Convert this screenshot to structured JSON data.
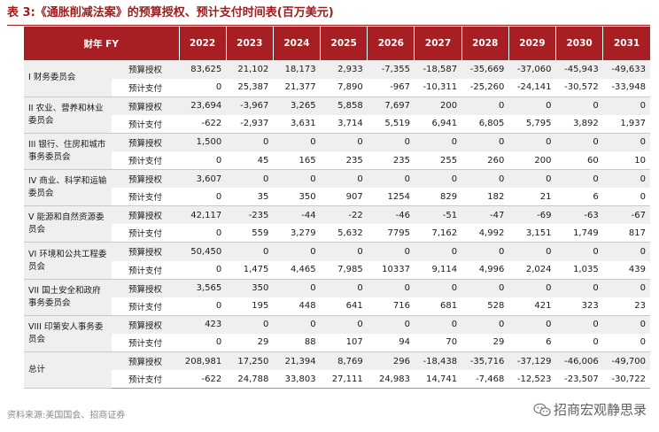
{
  "title": "表 3:《通胀削减法案》的预算授权、预计支付时间表(百万美元)",
  "header": {
    "label": "财年 FY",
    "years": [
      "2022",
      "2023",
      "2024",
      "2025",
      "2026",
      "2027",
      "2028",
      "2029",
      "2030",
      "2031"
    ]
  },
  "groups": [
    {
      "name": "I 财务委员会",
      "rows": [
        {
          "type": "预算授权",
          "values": [
            "83,625",
            "21,102",
            "18,173",
            "2,933",
            "-7,355",
            "-18,587",
            "-35,669",
            "-37,060",
            "-45,943",
            "-49,633"
          ]
        },
        {
          "type": "预计支付",
          "values": [
            "0",
            "25,387",
            "21,377",
            "7,890",
            "-967",
            "-10,311",
            "-25,260",
            "-24,141",
            "-30,572",
            "-33,948"
          ]
        }
      ]
    },
    {
      "name": "II 农业、营养和林业委员会",
      "rows": [
        {
          "type": "预算授权",
          "values": [
            "23,694",
            "-3,967",
            "3,265",
            "5,858",
            "7,697",
            "200",
            "0",
            "0",
            "0",
            "0"
          ]
        },
        {
          "type": "预计支付",
          "values": [
            "-622",
            "-2,937",
            "3,631",
            "3,714",
            "5,519",
            "6,941",
            "6,805",
            "5,795",
            "3,892",
            "1,937"
          ]
        }
      ]
    },
    {
      "name": "III 银行、住房和城市事务委员会",
      "rows": [
        {
          "type": "预算授权",
          "values": [
            "1,500",
            "0",
            "0",
            "0",
            "0",
            "0",
            "0",
            "0",
            "0",
            "0"
          ]
        },
        {
          "type": "预计支付",
          "values": [
            "0",
            "45",
            "165",
            "235",
            "235",
            "255",
            "260",
            "200",
            "60",
            "10"
          ]
        }
      ]
    },
    {
      "name": "IV 商业、科学和运输委员会",
      "rows": [
        {
          "type": "预算授权",
          "values": [
            "3,607",
            "0",
            "0",
            "0",
            "0",
            "0",
            "0",
            "0",
            "0",
            "0"
          ]
        },
        {
          "type": "预计支付",
          "values": [
            "0",
            "35",
            "350",
            "907",
            "1254",
            "829",
            "182",
            "21",
            "6",
            "0"
          ]
        }
      ]
    },
    {
      "name": "V 能源和自然资源委员会",
      "rows": [
        {
          "type": "预算授权",
          "values": [
            "42,117",
            "-235",
            "-44",
            "-22",
            "-46",
            "-51",
            "-47",
            "-69",
            "-63",
            "-67"
          ]
        },
        {
          "type": "预计支付",
          "values": [
            "0",
            "559",
            "3,279",
            "5,632",
            "7795",
            "7,162",
            "4,992",
            "3,151",
            "1,749",
            "817"
          ]
        }
      ]
    },
    {
      "name": "VI 环境和公共工程委员会",
      "rows": [
        {
          "type": "预算授权",
          "values": [
            "50,450",
            "0",
            "0",
            "0",
            "0",
            "0",
            "0",
            "0",
            "0",
            "0"
          ]
        },
        {
          "type": "预计支付",
          "values": [
            "0",
            "1,475",
            "4,465",
            "7,985",
            "10337",
            "9,114",
            "4,996",
            "2,024",
            "1,035",
            "439"
          ]
        }
      ]
    },
    {
      "name": "VII 国土安全和政府事务委员会",
      "rows": [
        {
          "type": "预算授权",
          "values": [
            "3,565",
            "350",
            "0",
            "0",
            "0",
            "0",
            "0",
            "0",
            "0",
            "0"
          ]
        },
        {
          "type": "预计支付",
          "values": [
            "0",
            "195",
            "448",
            "641",
            "716",
            "681",
            "528",
            "421",
            "323",
            "23"
          ]
        }
      ]
    },
    {
      "name": "VIII 印第安人事务委员会",
      "rows": [
        {
          "type": "预算授权",
          "values": [
            "423",
            "0",
            "0",
            "0",
            "0",
            "0",
            "0",
            "0",
            "0",
            "0"
          ]
        },
        {
          "type": "预计支付",
          "values": [
            "0",
            "29",
            "88",
            "107",
            "94",
            "70",
            "29",
            "6",
            "0",
            "0"
          ]
        }
      ]
    },
    {
      "name": "总计",
      "total": true,
      "rows": [
        {
          "type": "预算授权",
          "values": [
            "208,981",
            "17,250",
            "21,394",
            "8,769",
            "296",
            "-18,438",
            "-35,716",
            "-37,129",
            "-46,006",
            "-49,700"
          ]
        },
        {
          "type": "预计支付",
          "values": [
            "-622",
            "24,788",
            "33,803",
            "27,111",
            "24,983",
            "14,741",
            "-7,468",
            "-12,523",
            "-23,507",
            "-30,722"
          ]
        }
      ]
    }
  ],
  "source": "资料来源:美国国会、招商证券",
  "brand": "招商宏观静思录",
  "colors": {
    "accent": "#a71f22",
    "title": "#9e1b1b"
  },
  "icons": {
    "brand": "wechat-icon"
  }
}
